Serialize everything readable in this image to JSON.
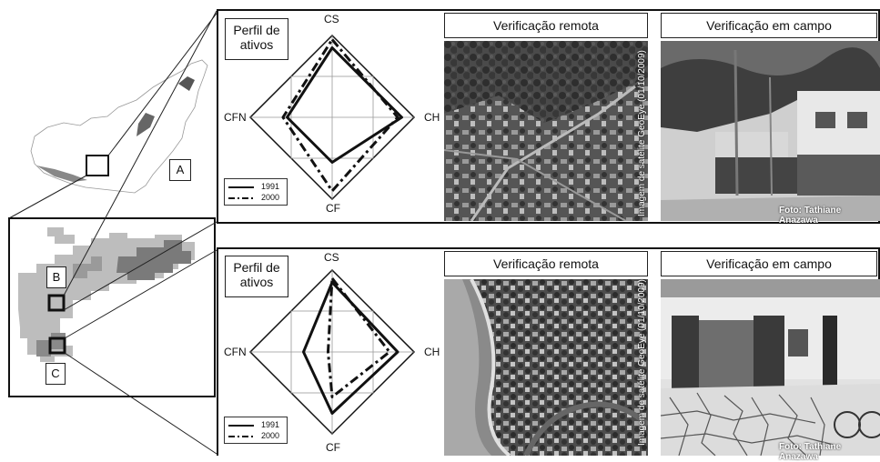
{
  "overview": {
    "label_a": "A",
    "label_b": "B",
    "label_c": "C"
  },
  "panels": [
    {
      "profile_label": "Perfil de ativos",
      "axes": {
        "top": "CS",
        "right": "CH",
        "bottom": "CF",
        "left": "CFN"
      },
      "legend": [
        "1991",
        "2000"
      ],
      "remote_title": "Verificação remota",
      "field_title": "Verificação em campo",
      "satellite_credit": "Imagem de satélite GeoEye (01/10/2009)",
      "photo_credit": "Foto: Tathiane Anazawa"
    },
    {
      "profile_label": "Perfil de ativos",
      "axes": {
        "top": "CS",
        "right": "CH",
        "bottom": "CF",
        "left": "CFN"
      },
      "legend": [
        "1991",
        "2000"
      ],
      "remote_title": "Verificação remota",
      "field_title": "Verificação em campo",
      "satellite_credit": "Imagem de satélite GeoEye (01/10/2009)",
      "photo_credit": "Foto: Tathiane Anazawa"
    }
  ],
  "chart_data": [
    {
      "type": "radar",
      "axes": [
        "CS",
        "CH",
        "CF",
        "CFN"
      ],
      "series": [
        {
          "name": "1991",
          "values": [
            0.85,
            0.85,
            0.55,
            0.55
          ]
        },
        {
          "name": "2000",
          "values": [
            0.95,
            0.8,
            0.9,
            0.6
          ]
        }
      ]
    },
    {
      "type": "radar",
      "axes": [
        "CS",
        "CH",
        "CF",
        "CFN"
      ],
      "series": [
        {
          "name": "1991",
          "values": [
            0.85,
            0.8,
            0.75,
            0.35
          ]
        },
        {
          "name": "2000",
          "values": [
            0.9,
            0.7,
            0.55,
            0.05
          ]
        }
      ]
    }
  ]
}
